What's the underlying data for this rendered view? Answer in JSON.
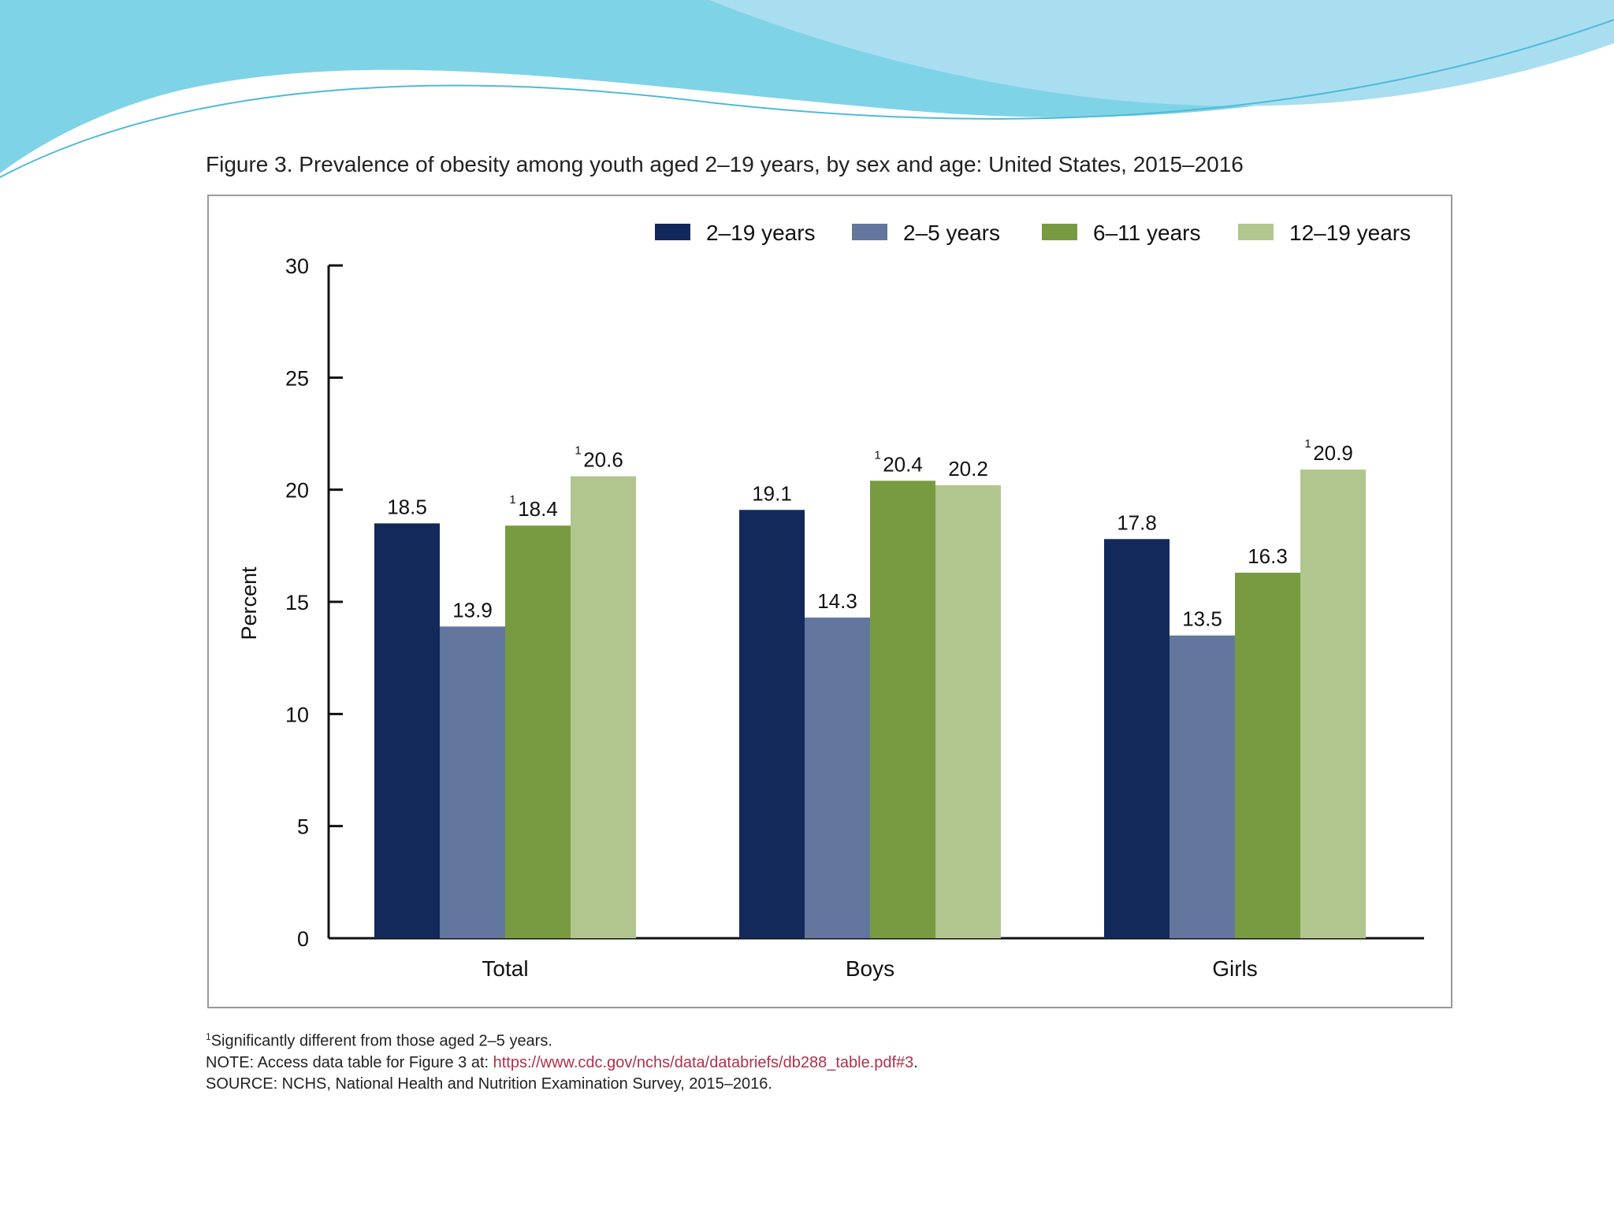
{
  "figure": {
    "title": "Figure 3. Prevalence of obesity among youth aged 2–19 years, by sex and age: United States, 2015–2016"
  },
  "footnotes": {
    "superscript": "1",
    "significance": "Significantly different from those aged 2–5 years.",
    "note_prefix": "NOTE: Access data table for Figure 3 at: ",
    "note_link": "https://www.cdc.gov/nchs/data/databriefs/db288_table.pdf#3",
    "note_suffix": ".",
    "source": "SOURCE: NCHS, National Health and Nutrition Examination Survey, 2015–2016."
  },
  "theme": {
    "wave_colors": [
      "#7fd3e6",
      "#a9def0",
      "#4fbad8"
    ]
  },
  "chart_data": {
    "type": "bar",
    "title": "Figure 3. Prevalence of obesity among youth aged 2–19 years, by sex and age: United States, 2015–2016",
    "xlabel": "",
    "ylabel": "Percent",
    "ylim": [
      0,
      30
    ],
    "yticks": [
      0,
      5,
      10,
      15,
      20,
      25,
      30
    ],
    "grid": false,
    "legend_position": "top-right",
    "categories": [
      "Total",
      "Boys",
      "Girls"
    ],
    "series": [
      {
        "name": "2–19 years",
        "color": "#12295a",
        "values": [
          18.5,
          19.1,
          17.8
        ],
        "flags": [
          false,
          false,
          false
        ]
      },
      {
        "name": "2–5 years",
        "color": "#62769e",
        "values": [
          13.9,
          14.3,
          13.5
        ],
        "flags": [
          false,
          false,
          false
        ]
      },
      {
        "name": "6–11 years",
        "color": "#789a41",
        "values": [
          18.4,
          20.4,
          16.3
        ],
        "flags": [
          true,
          true,
          false
        ]
      },
      {
        "name": "12–19 years",
        "color": "#b1c68f",
        "values": [
          20.6,
          20.2,
          20.9
        ],
        "flags": [
          true,
          false,
          true
        ]
      }
    ],
    "flag_marker": "1"
  }
}
